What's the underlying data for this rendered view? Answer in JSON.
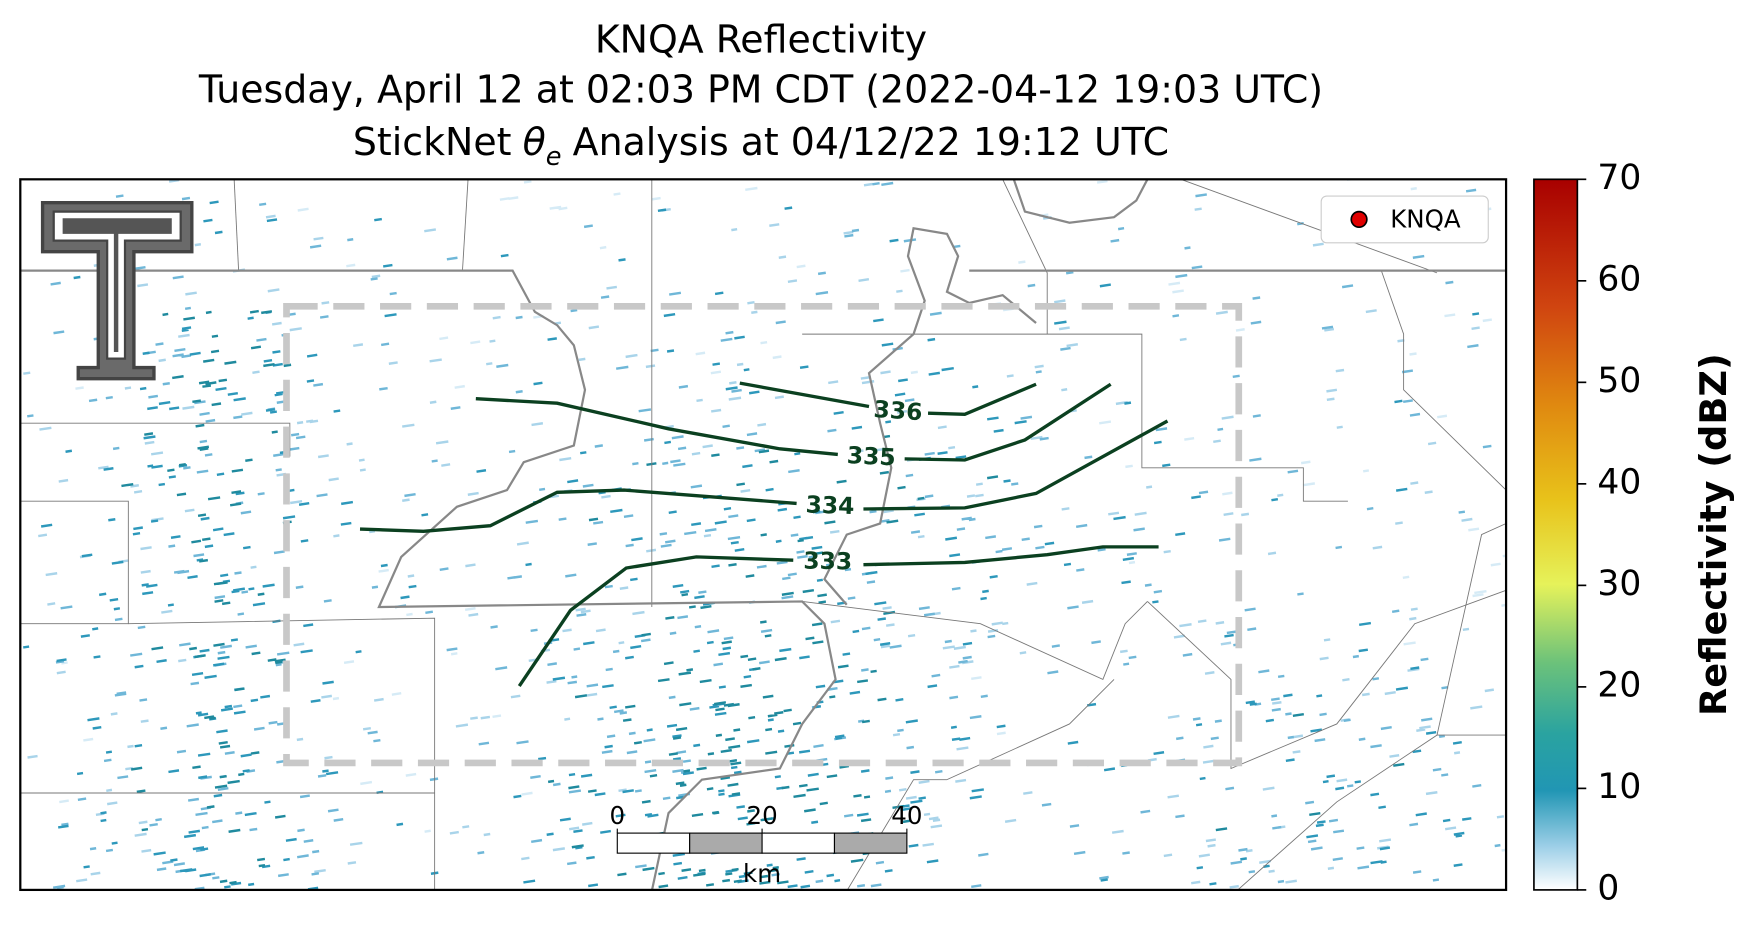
{
  "title": {
    "line1": "KNQA Reflectivity",
    "line2": "Tuesday, April 12 at 02:03 PM CDT (2022-04-12 19:03 UTC)",
    "line3": {
      "prefix": "StickNet",
      "symbol": "θ",
      "subscript": "e",
      "suffix": "Analysis at 04/12/22 19:12 UTC"
    }
  },
  "legend": {
    "label": "KNQA",
    "color": "#e00000"
  },
  "contours": [
    {
      "level": 336
    },
    {
      "level": 335
    },
    {
      "level": 334
    },
    {
      "level": 333
    }
  ],
  "scale_bar": {
    "ticks": [
      0,
      20,
      40
    ],
    "unit": "km"
  },
  "colorbar": {
    "label": "Reflectivity (dBZ)",
    "lim": [
      0,
      70
    ],
    "ticks": [
      0,
      10,
      20,
      30,
      40,
      50,
      60,
      70
    ]
  }
}
